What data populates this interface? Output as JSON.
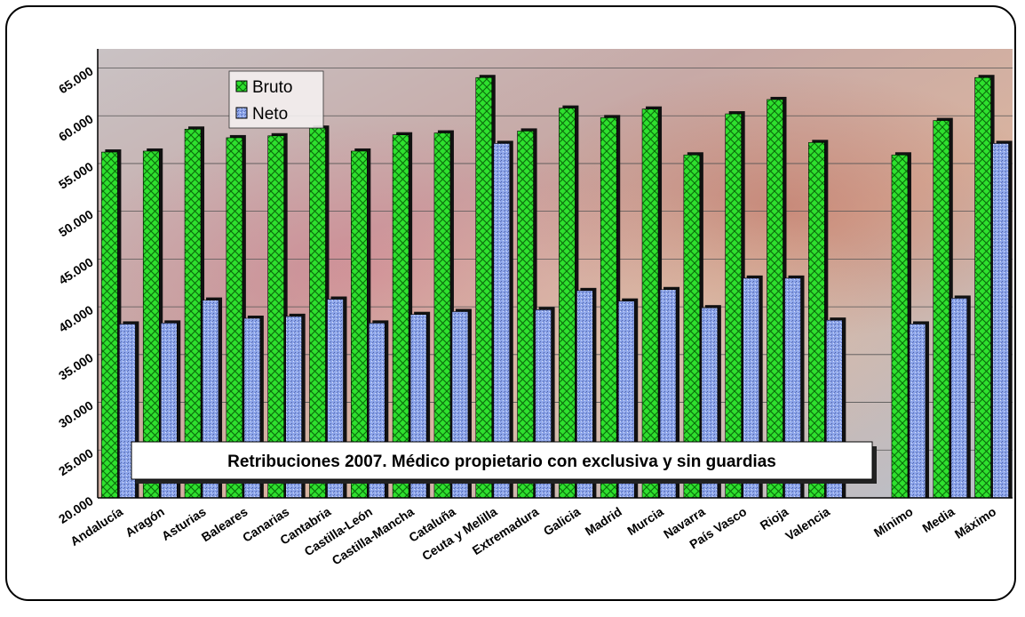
{
  "chart_data": {
    "type": "bar",
    "title": "Retribuciones 2007. Médico propietario con exclusiva y sin guardias",
    "categories": [
      "Andalucía",
      "Aragón",
      "Asturias",
      "Baleares",
      "Canarias",
      "Cantabria",
      "Castilla-León",
      "Castilla-Mancha",
      "Cataluña",
      "Ceuta y Melilla",
      "Extremadura",
      "Galicia",
      "Madrid",
      "Murcia",
      "Navarra",
      "País Vasco",
      "Rioja",
      "Valencia",
      "",
      "Mínimo",
      "Media",
      "Máximo"
    ],
    "series": [
      {
        "name": "Bruto",
        "color": "#22dd22",
        "values": [
          56200,
          56300,
          58600,
          57700,
          57900,
          58700,
          56300,
          58000,
          58200,
          64000,
          58400,
          60800,
          59800,
          60700,
          55900,
          60200,
          61700,
          57200,
          null,
          55900,
          59500,
          64000
        ]
      },
      {
        "name": "Neto",
        "color": "#8aa2e8",
        "values": [
          38200,
          38300,
          40700,
          38800,
          39000,
          40800,
          38300,
          39200,
          39500,
          57100,
          39700,
          41700,
          40600,
          41800,
          39900,
          43000,
          43000,
          38600,
          null,
          38200,
          40900,
          57100
        ]
      }
    ],
    "ylim": [
      20000,
      67000
    ],
    "yticks": [
      "20.000",
      "25.000",
      "30.000",
      "35.000",
      "40.000",
      "45.000",
      "50.000",
      "55.000",
      "60.000",
      "65.000"
    ],
    "legend_position": "top-left",
    "grid": true
  }
}
